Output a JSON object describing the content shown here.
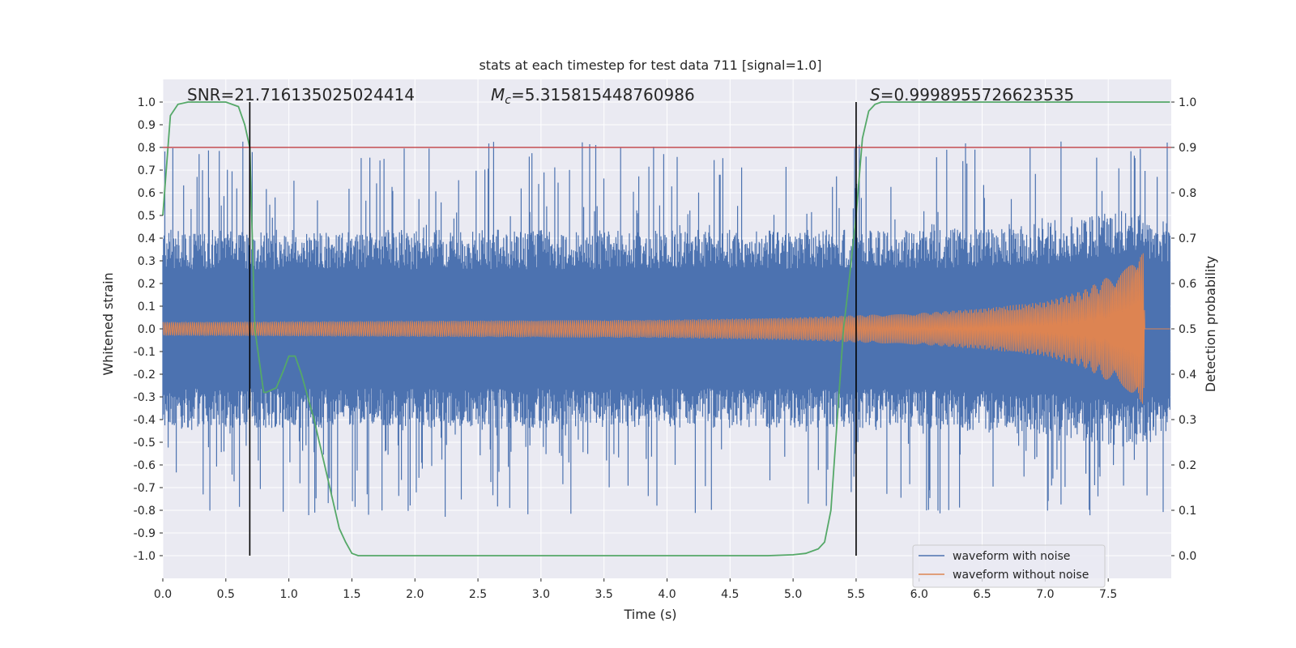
{
  "chart_data": {
    "type": "line",
    "title": "stats at each timestep for test data 711 [signal=1.0]",
    "xlabel": "Time (s)",
    "ylabel": "Whitened strain",
    "y2label": "Detection probability",
    "xlim": [
      0.0,
      8.0
    ],
    "ylim": [
      -1.1,
      1.1
    ],
    "y2lim": [
      -0.05,
      1.05
    ],
    "x_ticks": [
      "0.0",
      "0.5",
      "1.0",
      "1.5",
      "2.0",
      "2.5",
      "3.0",
      "3.5",
      "4.0",
      "4.5",
      "5.0",
      "5.5",
      "6.0",
      "6.5",
      "7.0",
      "7.5"
    ],
    "y_ticks": [
      "1.0",
      "0.9",
      "0.8",
      "0.7",
      "0.6",
      "0.5",
      "0.4",
      "0.3",
      "0.2",
      "0.1",
      "0.0",
      "-0.1",
      "-0.2",
      "-0.3",
      "-0.4",
      "-0.5",
      "-0.6",
      "-0.7",
      "-0.8",
      "-0.9",
      "-1.0"
    ],
    "y2_ticks": [
      "1.0",
      "0.9",
      "0.8",
      "0.7",
      "0.6",
      "0.5",
      "0.4",
      "0.3",
      "0.2",
      "0.1",
      "0.0"
    ],
    "annotations": {
      "snr": "SNR=21.716135025024414",
      "mc_symbol": "M",
      "mc_sub": "c",
      "mc_value": "=5.315815448760986",
      "s_symbol": "S",
      "s_value": "=0.9998955726623535"
    },
    "threshold": {
      "y2": 0.9,
      "color": "#c44e52"
    },
    "vertical_markers_x": [
      0.69,
      5.5
    ],
    "noisy_envelope": {
      "x": [
        0.0,
        1.0,
        2.0,
        3.0,
        4.0,
        5.0,
        6.0,
        7.0,
        7.6,
        7.8,
        7.99
      ],
      "base": [
        0.35,
        0.35,
        0.35,
        0.35,
        0.35,
        0.35,
        0.35,
        0.38,
        0.42,
        0.4,
        0.38
      ],
      "spike_max": 0.95
    },
    "clean_envelope": {
      "x": [
        0.0,
        2.0,
        4.0,
        5.0,
        6.0,
        6.5,
        7.0,
        7.3,
        7.5,
        7.65,
        7.75,
        7.78,
        7.79,
        8.0
      ],
      "amp": [
        0.03,
        0.035,
        0.04,
        0.05,
        0.07,
        0.09,
        0.12,
        0.17,
        0.23,
        0.3,
        0.38,
        0.35,
        0.0,
        0.0
      ]
    },
    "series": [
      {
        "name": "waveform with noise",
        "color": "#4c72b0"
      },
      {
        "name": "waveform without noise",
        "color": "#dd8452"
      },
      {
        "name": "detection probability",
        "color": "#55a868",
        "axis": "right",
        "x": [
          0.0,
          0.06,
          0.12,
          0.2,
          0.3,
          0.4,
          0.5,
          0.6,
          0.65,
          0.69,
          0.73,
          0.8,
          0.82,
          0.9,
          0.96,
          1.0,
          1.05,
          1.1,
          1.2,
          1.3,
          1.4,
          1.45,
          1.5,
          1.55,
          2.0,
          3.0,
          4.0,
          4.8,
          5.0,
          5.1,
          5.2,
          5.25,
          5.3,
          5.35,
          5.4,
          5.45,
          5.5,
          5.55,
          5.6,
          5.65,
          5.7,
          6.0,
          7.0,
          7.99
        ],
        "y": [
          0.75,
          0.97,
          0.995,
          1.0,
          1.0,
          1.0,
          1.0,
          0.99,
          0.95,
          0.9,
          0.5,
          0.36,
          0.36,
          0.37,
          0.41,
          0.44,
          0.44,
          0.4,
          0.3,
          0.18,
          0.06,
          0.03,
          0.005,
          0.0,
          0.0,
          0.0,
          0.0,
          0.0,
          0.002,
          0.005,
          0.015,
          0.03,
          0.1,
          0.3,
          0.5,
          0.62,
          0.75,
          0.92,
          0.98,
          0.995,
          1.0,
          1.0,
          1.0,
          1.0
        ]
      }
    ],
    "legend": {
      "location": "bottom-right",
      "entries": [
        "waveform with noise",
        "waveform without noise"
      ]
    },
    "grid": true,
    "colors": {
      "axes_bg": "#eaeaf2",
      "grid": "#ffffff",
      "marker": "#000000",
      "text": "#262626"
    }
  }
}
